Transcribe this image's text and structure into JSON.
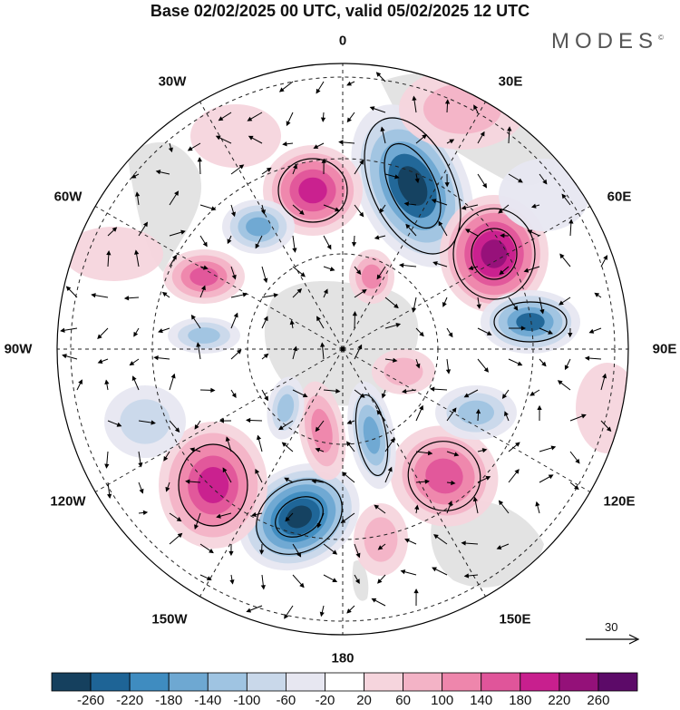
{
  "title": "Base 02/02/2025 00 UTC, valid 05/02/2025 12 UTC",
  "brand": "MODES",
  "brand_mark": "©",
  "longitude_labels": [
    "0",
    "30E",
    "60E",
    "90E",
    "120E",
    "150E",
    "180",
    "150W",
    "120W",
    "90W",
    "60W",
    "30W"
  ],
  "reference_vector": {
    "label": "30"
  },
  "colorbar": {
    "ticks": [
      "-260",
      "-220",
      "-180",
      "-140",
      "-100",
      "-60",
      "-20",
      "20",
      "60",
      "100",
      "140",
      "180",
      "220",
      "260"
    ],
    "colors": [
      "#15405e",
      "#1e6496",
      "#3f8cc0",
      "#6ea8d2",
      "#9fc4e2",
      "#c9d8ea",
      "#e7e7f1",
      "#ffffff",
      "#f6d5dd",
      "#f3b3c6",
      "#ee86ac",
      "#e0559a",
      "#c81f8e",
      "#941179",
      "#5c0a68"
    ]
  },
  "colors": {
    "land": "#e3e3e3",
    "ocean": "#ffffff",
    "contour": "#000000"
  }
}
